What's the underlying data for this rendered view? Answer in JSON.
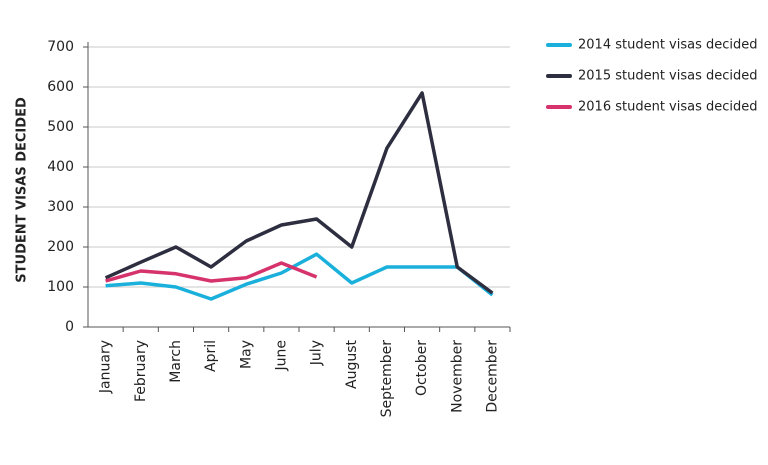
{
  "chart_data": {
    "type": "line",
    "y_label": "STUDENT VISAS DECIDED",
    "categories": [
      "January",
      "February",
      "March",
      "April",
      "May",
      "June",
      "July",
      "August",
      "September",
      "October",
      "November",
      "December"
    ],
    "series": [
      {
        "name": "2014 student visas decided",
        "color": "#1ab0dc",
        "values": [
          103,
          110,
          100,
          70,
          107,
          135,
          182,
          110,
          150,
          150,
          150,
          80
        ]
      },
      {
        "name": "2015 student visas decided",
        "color": "#2d2f40",
        "values": [
          123,
          162,
          200,
          150,
          215,
          255,
          270,
          200,
          447,
          585,
          150,
          85
        ]
      },
      {
        "name": "2016 student visas decided",
        "color": "#d6336c",
        "values": [
          115,
          140,
          133,
          115,
          123,
          160,
          125,
          null,
          null,
          null,
          null,
          null
        ]
      }
    ],
    "ylim": [
      0,
      700
    ],
    "yticks": [
      0,
      100,
      200,
      300,
      400,
      500,
      600,
      700
    ],
    "grid": true,
    "legend": "top-right"
  }
}
